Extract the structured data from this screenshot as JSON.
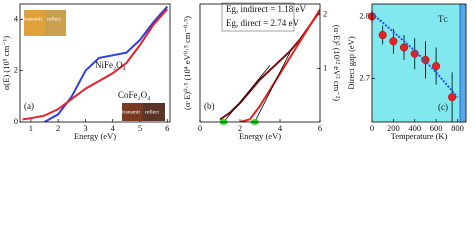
{
  "chart_data": [
    {
      "type": "line",
      "xlabel": "Energy (eV)",
      "ylabel": "α(E) (10⁵ cm⁻¹)",
      "xlim": [
        0.6,
        6.1
      ],
      "ylim": [
        0,
        4.6
      ],
      "xticks": [
        1,
        2,
        3,
        4,
        5,
        6
      ],
      "yticks": [
        0,
        2,
        4
      ],
      "annotations": [
        "(a)",
        "NiFe₂O₄",
        "CoFe₂O₄",
        "transmit",
        "reflect",
        "transmit",
        "reflect"
      ],
      "series": [
        {
          "color": "#2b3fe3",
          "x": [
            1.5,
            2,
            2.5,
            3,
            3.5,
            4,
            4.5,
            5,
            5.5,
            6
          ],
          "values": [
            0,
            0.3,
            1.0,
            2.0,
            2.5,
            2.6,
            2.7,
            3.2,
            3.9,
            4.5
          ]
        },
        {
          "color": "#e8202a",
          "x": [
            0.7,
            1,
            1.5,
            2,
            2.5,
            3,
            3.5,
            4,
            4.5,
            5,
            5.5,
            6
          ],
          "values": [
            0.1,
            0.15,
            0.25,
            0.5,
            0.9,
            1.3,
            1.6,
            1.9,
            2.3,
            3.0,
            3.8,
            4.4
          ]
        }
      ]
    },
    {
      "type": "line",
      "xlabel": "Energy (eV)",
      "ylabel": "(α·E)⁰·⁵ (10⁴ eV⁰·⁵ cm⁻⁰·⁵)",
      "y2label": "(α·E)² (10¹² eV² cm⁻²)",
      "xlim": [
        0,
        6
      ],
      "ylim": [
        0,
        5
      ],
      "y2lim": [
        0,
        2.2
      ],
      "xticks": [
        0,
        2,
        4,
        6
      ],
      "y2ticks": [
        1,
        2
      ],
      "annotations": [
        "(b)",
        "Eg, indirect = 1.18 eV",
        "Eg, direct = 2.74 eV"
      ],
      "markers_x": [
        1.18,
        2.74
      ],
      "marker_color": "#22dd22",
      "series": [
        {
          "color": "#7a1010",
          "x": [
            1,
            1.5,
            2,
            2.5,
            3,
            3.5,
            4,
            4.5,
            5,
            5.5,
            6
          ],
          "values": [
            0.1,
            0.4,
            0.8,
            1.3,
            1.8,
            2.2,
            2.6,
            3.0,
            3.5,
            4.1,
            4.7
          ]
        },
        {
          "color": "#e0231f",
          "axis": "y2",
          "x": [
            2,
            2.5,
            3,
            3.5,
            4,
            4.5,
            5,
            5.5,
            6
          ],
          "values": [
            0,
            0.05,
            0.3,
            0.6,
            0.9,
            1.2,
            1.5,
            1.8,
            2.1
          ]
        },
        {
          "color": "#000000",
          "x": [
            1.18,
            3.5
          ],
          "values": [
            0,
            2.4
          ]
        },
        {
          "color": "#000000",
          "axis": "y2",
          "x": [
            2.74,
            4.5
          ],
          "values": [
            0,
            1.3
          ]
        }
      ]
    },
    {
      "type": "scatter",
      "xlabel": "Temperature (K)",
      "ylabel": "Direct gap (eV)",
      "xlim": [
        0,
        880
      ],
      "ylim": [
        2.63,
        2.82
      ],
      "xticks": [
        0,
        200,
        400,
        600,
        800
      ],
      "yticks": [
        2.7,
        2.8
      ],
      "background": "#80e8ee",
      "vline": 825,
      "vline_color": "#3a7fe0",
      "annotations": [
        "(c)",
        "Tᴄ"
      ],
      "series": [
        {
          "color": "#e52222",
          "mode": "markers",
          "x": [
            0,
            100,
            200,
            300,
            400,
            500,
            600,
            750
          ],
          "values": [
            2.8,
            2.77,
            2.76,
            2.75,
            2.74,
            2.73,
            2.72,
            2.67
          ],
          "errors": [
            0.01,
            0.015,
            0.02,
            0.02,
            0.025,
            0.03,
            0.03,
            0.04
          ]
        },
        {
          "color": "#2255dd",
          "mode": "dashed",
          "x": [
            0,
            200,
            400,
            600,
            800
          ],
          "values": [
            2.805,
            2.775,
            2.745,
            2.71,
            2.67
          ]
        }
      ]
    }
  ]
}
